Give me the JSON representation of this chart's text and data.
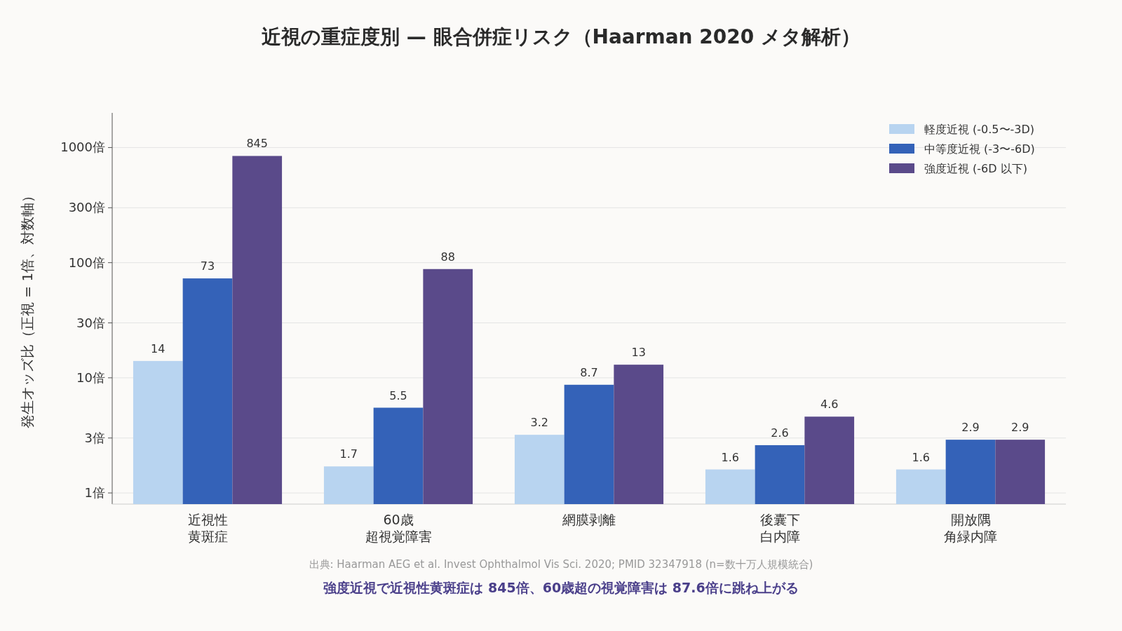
{
  "chart_data": {
    "type": "bar",
    "title": "近視の重症度別 — 眼合併症リスク（Haarman 2020 メタ解析）",
    "ylabel": "発生オッズ比（正視 = 1倍、対数軸）",
    "categories": [
      "近視性黄斑症",
      "60歳超視覚障害",
      "網膜剥離",
      "後囊下白内障",
      "開放隅角緑内障"
    ],
    "series": [
      {
        "name": "軽度近視 (-0.5〜-3D)",
        "color": "#b8d4f0",
        "values": [
          14,
          1.7,
          3.2,
          1.6,
          1.6
        ]
      },
      {
        "name": "中等度近視 (-3〜-6D)",
        "color": "#3462b8",
        "values": [
          73,
          5.5,
          8.7,
          2.6,
          2.9
        ]
      },
      {
        "name": "強度近視 (-6D 以下)",
        "color": "#5a4a8a",
        "values": [
          845,
          88,
          13,
          4.6,
          2.9
        ]
      }
    ],
    "log": "y",
    "ylim": [
      0.8,
      2000
    ],
    "yticks": [
      {
        "value": 1,
        "label": "1倍"
      },
      {
        "value": 3,
        "label": "3倍"
      },
      {
        "value": 10,
        "label": "10倍"
      },
      {
        "value": 30,
        "label": "30倍"
      },
      {
        "value": 100,
        "label": "100倍"
      },
      {
        "value": 300,
        "label": "300倍"
      },
      {
        "value": 1000,
        "label": "1000倍"
      }
    ],
    "grid": "y",
    "legend": "top right",
    "data_labels": true,
    "annotations": [
      "出典: Haarman AEG et al. Invest Ophthalmol Vis Sci. 2020; PMID 32347918 (n=数十万人規模統合)",
      "強度近視で近視性黄斑症は 845倍、60歳超の視覚障害は 87.6倍に跳ね上がる"
    ]
  }
}
